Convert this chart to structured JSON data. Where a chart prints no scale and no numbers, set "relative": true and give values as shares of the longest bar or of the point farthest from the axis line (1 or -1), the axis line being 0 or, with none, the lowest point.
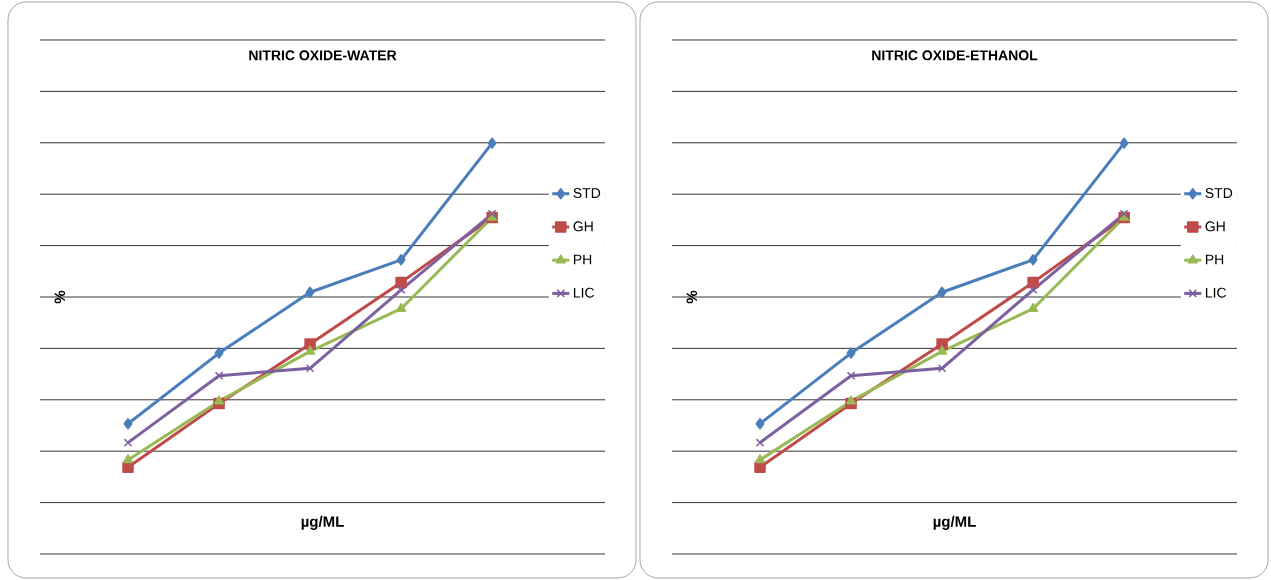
{
  "chart_data": [
    {
      "type": "line",
      "title": "NITRIC OXIDE-WATER",
      "xlabel": "µg/ML",
      "ylabel": "%",
      "relative": true,
      "grid": "y",
      "legend": "right",
      "categories": [
        null,
        null,
        null,
        null,
        null
      ],
      "series": [
        {
          "name": "STD",
          "color": "#4a7ebb",
          "marker": "diamond",
          "values": [
            0.317,
            0.489,
            0.637,
            0.716,
            1
          ]
        },
        {
          "name": "GH",
          "color": "#be4b48",
          "marker": "square",
          "values": [
            0.211,
            0.366,
            0.511,
            0.661,
            0.819
          ]
        },
        {
          "name": "PH",
          "color": "#98b954",
          "marker": "triangle",
          "values": [
            0.229,
            0.372,
            0.493,
            0.597,
            0.819
          ]
        },
        {
          "name": "LIC",
          "color": "#7d60a0",
          "marker": "cross",
          "values": [
            0.271,
            0.434,
            0.452,
            0.643,
            0.828
          ]
        }
      ]
    },
    {
      "type": "line",
      "title": "NITRIC OXIDE-ETHANOL",
      "xlabel": "µg/ML",
      "ylabel": "%",
      "relative": true,
      "grid": "y",
      "legend": "right",
      "categories": [
        null,
        null,
        null,
        null,
        null
      ],
      "series": [
        {
          "name": "STD",
          "color": "#4a7ebb",
          "marker": "diamond",
          "values": [
            0.317,
            0.489,
            0.637,
            0.716,
            1
          ]
        },
        {
          "name": "GH",
          "color": "#be4b48",
          "marker": "square",
          "values": [
            0.211,
            0.366,
            0.511,
            0.661,
            0.819
          ]
        },
        {
          "name": "PH",
          "color": "#98b954",
          "marker": "triangle",
          "values": [
            0.229,
            0.372,
            0.493,
            0.597,
            0.819
          ]
        },
        {
          "name": "LIC",
          "color": "#7d60a0",
          "marker": "cross",
          "values": [
            0.271,
            0.434,
            0.452,
            0.643,
            0.828
          ]
        }
      ]
    }
  ]
}
